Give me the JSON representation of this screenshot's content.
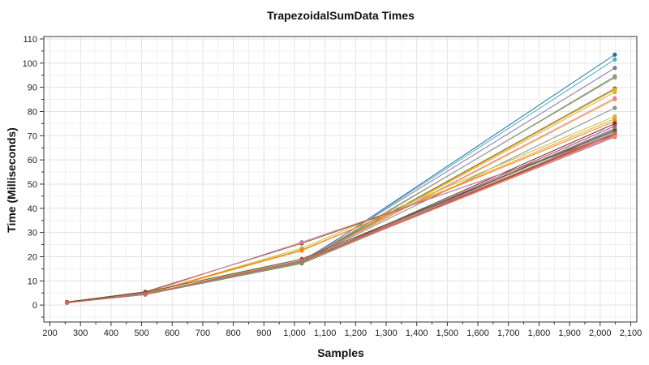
{
  "chart_data": {
    "type": "line",
    "title": "TrapezoidalSumData Times",
    "xlabel": "Samples",
    "ylabel": "Time (Milliseconds)",
    "xlim": [
      180,
      2120
    ],
    "ylim": [
      -7,
      111
    ],
    "xticks": [
      200,
      300,
      400,
      500,
      600,
      700,
      800,
      900,
      1000,
      1100,
      1200,
      1300,
      1400,
      1500,
      1600,
      1700,
      1800,
      1900,
      2000,
      2100
    ],
    "xtick_labels": [
      "200",
      "300",
      "400",
      "500",
      "600",
      "700",
      "800",
      "900",
      "1,000",
      "1,100",
      "1,200",
      "1,300",
      "1,400",
      "1,500",
      "1,600",
      "1,700",
      "1,800",
      "1,900",
      "2,000",
      "2,100"
    ],
    "yticks": [
      0,
      10,
      20,
      30,
      40,
      50,
      60,
      70,
      80,
      90,
      100,
      110
    ],
    "ytick_labels": [
      "0",
      "10",
      "20",
      "30",
      "40",
      "50",
      "60",
      "70",
      "80",
      "90",
      "100",
      "110"
    ],
    "grid": true,
    "legend": "none",
    "x": [
      256,
      512,
      1024,
      2048
    ],
    "series": [
      {
        "color": "#2e6f9e",
        "values": [
          1.0,
          4.6,
          17.3,
          103.5
        ]
      },
      {
        "color": "#3fb4c7",
        "values": [
          1.0,
          4.5,
          17.6,
          101.5
        ]
      },
      {
        "color": "#8a6fb0",
        "values": [
          1.1,
          4.6,
          18.2,
          98.0
        ]
      },
      {
        "color": "#6e9a3e",
        "values": [
          1.0,
          4.4,
          17.4,
          94.5
        ]
      },
      {
        "color": "#999999",
        "values": [
          1.1,
          4.5,
          18.0,
          94.0
        ]
      },
      {
        "color": "#6d6d2a",
        "values": [
          1.0,
          4.5,
          17.9,
          89.5
        ]
      },
      {
        "color": "#f0a830",
        "values": [
          1.0,
          4.4,
          17.5,
          89.0
        ]
      },
      {
        "color": "#d4b820",
        "values": [
          1.0,
          4.5,
          17.7,
          88.0
        ]
      },
      {
        "color": "#e8c030",
        "values": [
          1.1,
          4.6,
          17.8,
          85.0
        ]
      },
      {
        "color": "#e978b8",
        "values": [
          1.0,
          4.5,
          18.0,
          85.5
        ]
      },
      {
        "color": "#8f8f8f",
        "values": [
          1.1,
          4.6,
          18.1,
          81.5
        ]
      },
      {
        "color": "#b8c24a",
        "values": [
          1.0,
          4.6,
          23.5,
          78.0
        ]
      },
      {
        "color": "#f5a020",
        "values": [
          1.0,
          4.5,
          22.5,
          77.0
        ]
      },
      {
        "color": "#ff7f0e",
        "values": [
          1.2,
          4.8,
          22.8,
          76.0
        ]
      },
      {
        "color": "#5a3a2a",
        "values": [
          1.0,
          4.5,
          17.8,
          75.0
        ]
      },
      {
        "color": "#c04070",
        "values": [
          1.0,
          4.4,
          17.6,
          74.0
        ]
      },
      {
        "color": "#8c4aa0",
        "values": [
          1.0,
          4.5,
          17.7,
          72.5
        ]
      },
      {
        "color": "#e0b040",
        "values": [
          1.1,
          4.5,
          19.0,
          72.0
        ]
      },
      {
        "color": "#d0c040",
        "values": [
          1.0,
          4.4,
          17.6,
          71.0
        ]
      },
      {
        "color": "#6aa0b8",
        "values": [
          1.0,
          4.4,
          17.5,
          71.5
        ]
      },
      {
        "color": "#2ca02c",
        "values": [
          1.0,
          4.3,
          17.2,
          71.0
        ]
      },
      {
        "color": "#d62728",
        "values": [
          1.0,
          4.5,
          17.6,
          70.5
        ]
      },
      {
        "color": "#e377c2",
        "values": [
          1.0,
          4.4,
          17.5,
          70.0
        ]
      },
      {
        "color": "#a0522d",
        "values": [
          1.3,
          5.5,
          25.5,
          70.5
        ]
      },
      {
        "color": "#c080a0",
        "values": [
          1.1,
          5.0,
          26.0,
          70.0
        ]
      },
      {
        "color": "#9467bd",
        "values": [
          1.0,
          4.6,
          17.7,
          69.5
        ]
      },
      {
        "color": "#ff8c42",
        "values": [
          1.0,
          4.5,
          17.6,
          69.8
        ]
      },
      {
        "color": "#7f7f7f",
        "values": [
          1.0,
          4.5,
          17.8,
          73.0
        ]
      },
      {
        "color": "#4e5e2a",
        "values": [
          1.2,
          5.3,
          19.0,
          72.0
        ]
      },
      {
        "color": "#e06060",
        "values": [
          1.0,
          4.6,
          18.5,
          71.0
        ]
      }
    ]
  }
}
